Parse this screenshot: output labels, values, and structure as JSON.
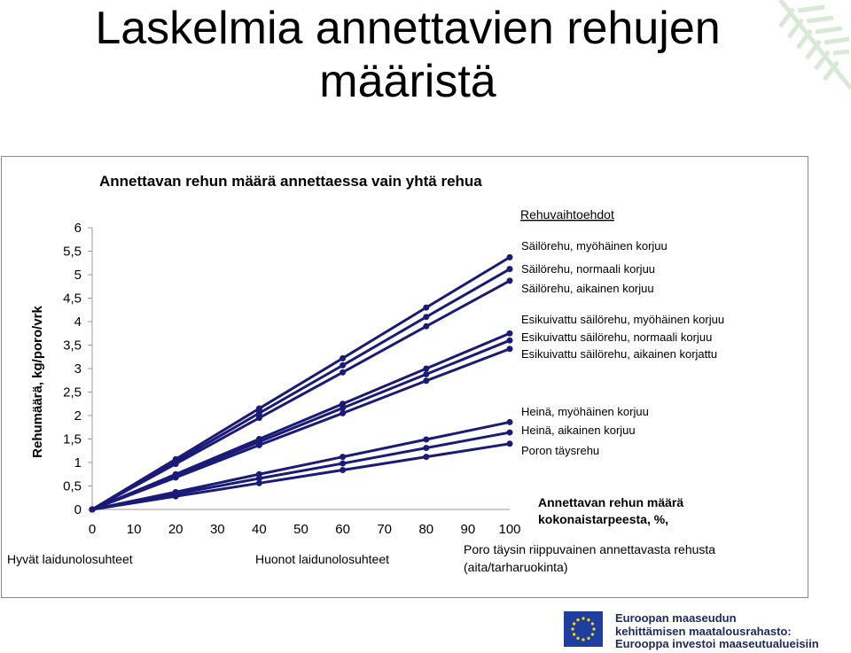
{
  "page": {
    "title_line1": "Laskelmia annettavien rehujen",
    "title_line2": "määristä"
  },
  "chart_data": {
    "type": "line",
    "title": "Annettavan rehun määrä annettaessa vain yhtä rehua",
    "ylabel": "Rehumäärä, kg/poro/vrk",
    "xlabel": "Annettavan rehun määrä kokonaistarpeesta, %,",
    "xlabel_lines": [
      "Annettavan rehun määrä",
      "kokonaistarpeesta, %,"
    ],
    "x_ticks": [
      "0",
      "10",
      "20",
      "30",
      "40",
      "50",
      "60",
      "70",
      "80",
      "90",
      "100"
    ],
    "y_ticks": [
      "0",
      "0,5",
      "1",
      "1,5",
      "2",
      "2,5",
      "3",
      "3,5",
      "4",
      "4,5",
      "5",
      "5,5",
      "6"
    ],
    "xlim": [
      0,
      100
    ],
    "ylim": [
      0,
      6
    ],
    "legend_title": "Rehuvaihtoehdot",
    "legend_placement": "right",
    "grid": false,
    "line_color": "#1a1a78",
    "x": [
      0,
      20,
      40,
      60,
      80,
      100
    ],
    "series": [
      {
        "name": "Säilörehu, myöhäinen korjuu",
        "values": [
          0,
          1.07,
          2.15,
          3.22,
          4.3,
          5.37
        ]
      },
      {
        "name": "Säilörehu, normaali korjuu",
        "values": [
          0,
          1.02,
          2.05,
          3.07,
          4.1,
          5.12
        ]
      },
      {
        "name": "Säilörehu, aikainen korjuu",
        "values": [
          0,
          0.97,
          1.95,
          2.92,
          3.9,
          4.87
        ]
      },
      {
        "name": "Esikuivattu säilörehu, myöhäinen korjuu",
        "values": [
          0,
          0.75,
          1.5,
          2.25,
          3.0,
          3.75
        ]
      },
      {
        "name": "Esikuivattu säilörehu, normaali korjuu",
        "values": [
          0,
          0.72,
          1.44,
          2.16,
          2.88,
          3.6
        ]
      },
      {
        "name": "Esikuivattu säilörehu, aikainen korjattu",
        "values": [
          0,
          0.68,
          1.37,
          2.05,
          2.74,
          3.42
        ]
      },
      {
        "name": "Heinä, myöhäinen korjuu",
        "values": [
          0,
          0.37,
          0.75,
          1.12,
          1.49,
          1.86
        ]
      },
      {
        "name": "Heinä, aikainen korjuu",
        "values": [
          0,
          0.33,
          0.66,
          0.98,
          1.31,
          1.64
        ]
      },
      {
        "name": "Poron täysrehu",
        "values": [
          0,
          0.28,
          0.56,
          0.84,
          1.12,
          1.4
        ]
      }
    ],
    "annotations": {
      "left": "Hyvät laidunolosuhteet",
      "middle": "Huonot laidunolosuhteet",
      "right_line1": "Poro täysin riippuvainen annettavasta rehusta",
      "right_line2": "(aita/tarharuokinta)"
    }
  },
  "footer": {
    "logo_line1": "Euroopan maaseudun",
    "logo_line2": "kehittämisen maatalousrahasto:",
    "logo_line3": "Eurooppa investoi maaseutualueisiin"
  }
}
